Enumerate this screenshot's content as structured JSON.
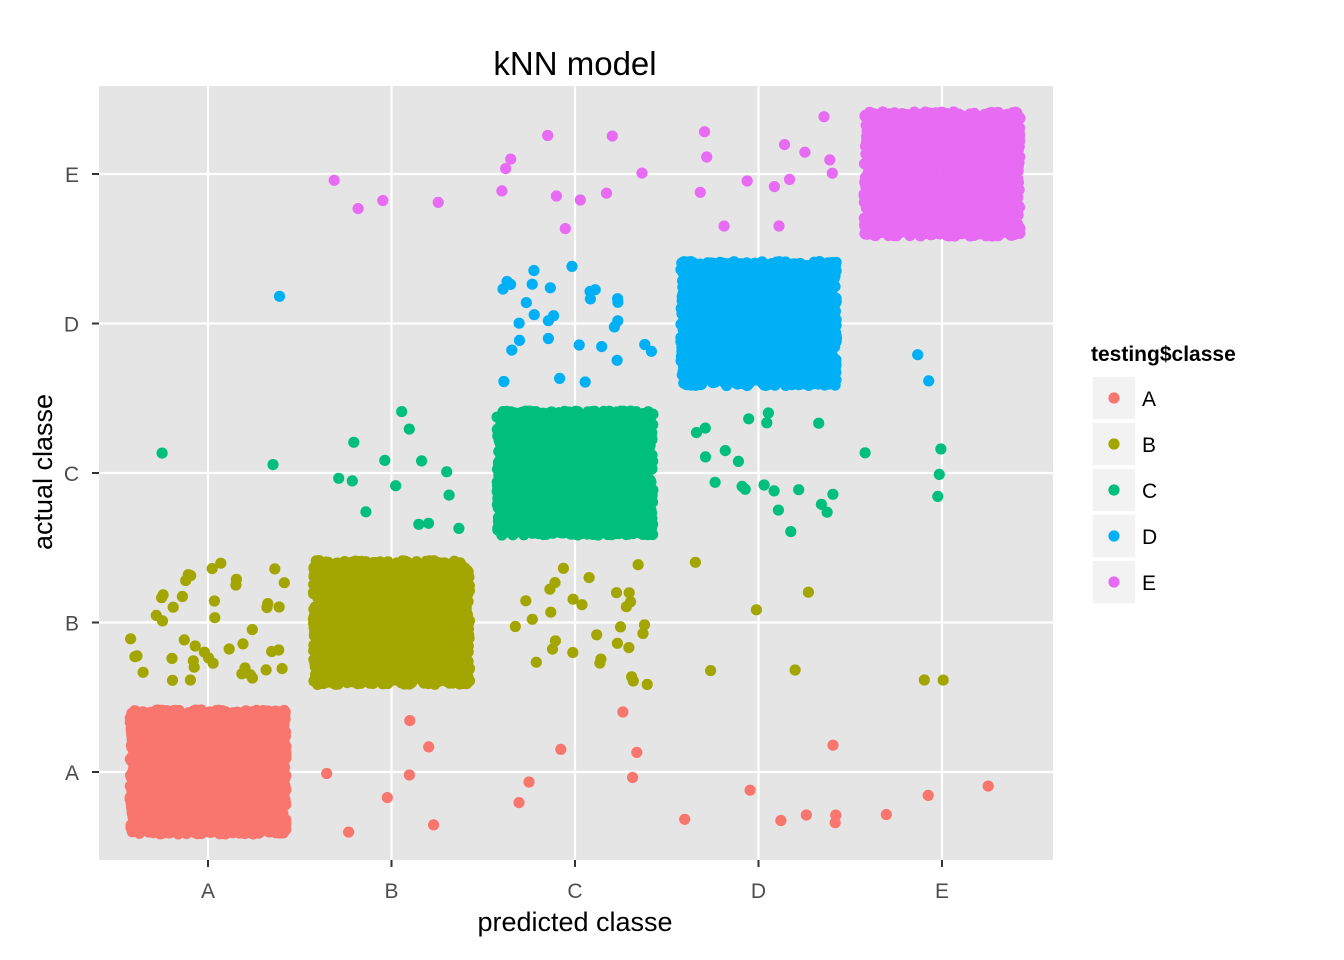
{
  "chart_data": {
    "type": "scatter",
    "title": "kNN model",
    "xlabel": "predicted classe",
    "ylabel": "actual classe",
    "x_categories": [
      "A",
      "B",
      "C",
      "D",
      "E"
    ],
    "y_categories": [
      "A",
      "B",
      "C",
      "D",
      "E"
    ],
    "jitter": true,
    "grid": true,
    "legend": {
      "title": "testing$classe",
      "position": "right",
      "entries": [
        "A",
        "B",
        "C",
        "D",
        "E"
      ]
    },
    "colors": {
      "A": "#F8766D",
      "B": "#A3A500",
      "C": "#00BF7D",
      "D": "#00B0F6",
      "E": "#E76BF3"
    },
    "series": [
      {
        "name": "A",
        "cells": [
          {
            "predicted": "A",
            "actual": "A",
            "count": "dense"
          },
          {
            "predicted": "B",
            "actual": "A",
            "count": 7
          },
          {
            "predicted": "C",
            "actual": "A",
            "count": 6
          },
          {
            "predicted": "D",
            "actual": "A",
            "count": 7
          },
          {
            "predicted": "E",
            "actual": "A",
            "count": 3
          }
        ]
      },
      {
        "name": "B",
        "cells": [
          {
            "predicted": "A",
            "actual": "B",
            "count": 45
          },
          {
            "predicted": "B",
            "actual": "B",
            "count": "dense"
          },
          {
            "predicted": "C",
            "actual": "B",
            "count": 30
          },
          {
            "predicted": "D",
            "actual": "B",
            "count": 5
          },
          {
            "predicted": "E",
            "actual": "B",
            "count": 2
          }
        ]
      },
      {
        "name": "C",
        "cells": [
          {
            "predicted": "A",
            "actual": "C",
            "count": 2
          },
          {
            "predicted": "B",
            "actual": "C",
            "count": 14
          },
          {
            "predicted": "C",
            "actual": "C",
            "count": "dense"
          },
          {
            "predicted": "D",
            "actual": "C",
            "count": 20
          },
          {
            "predicted": "E",
            "actual": "C",
            "count": 4
          }
        ]
      },
      {
        "name": "D",
        "cells": [
          {
            "predicted": "A",
            "actual": "D",
            "count": 1
          },
          {
            "predicted": "C",
            "actual": "D",
            "count": 30
          },
          {
            "predicted": "D",
            "actual": "D",
            "count": "dense"
          },
          {
            "predicted": "E",
            "actual": "D",
            "count": 2
          }
        ]
      },
      {
        "name": "E",
        "cells": [
          {
            "predicted": "B",
            "actual": "E",
            "count": 4
          },
          {
            "predicted": "C",
            "actual": "E",
            "count": 10
          },
          {
            "predicted": "D",
            "actual": "E",
            "count": 13
          },
          {
            "predicted": "E",
            "actual": "E",
            "count": "dense"
          }
        ]
      }
    ]
  }
}
